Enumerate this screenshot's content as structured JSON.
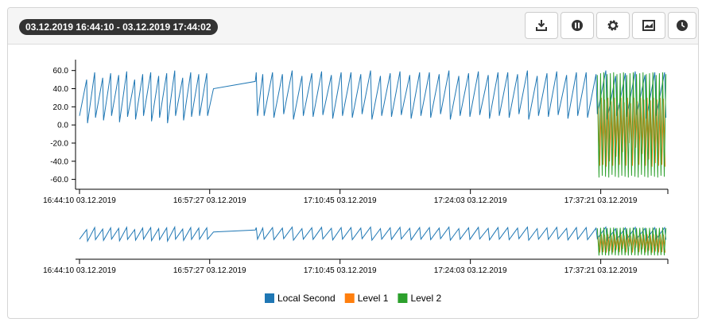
{
  "header": {
    "range_label": "03.12.2019 16:44:10 - 03.12.2019 17:44:02"
  },
  "chart_data": {
    "type": "line",
    "xlim": [
      "16:44:10",
      "17:44:02"
    ],
    "xticks": [
      "16:44:10 03.12.2019",
      "16:57:27 03.12.2019",
      "17:10:45 03.12.2019",
      "17:24:03 03.12.2019",
      "17:37:21 03.12.2019"
    ],
    "ylim": [
      -70,
      72
    ],
    "yticks": [
      {
        "value": 60,
        "label": "60.0"
      },
      {
        "value": 40,
        "label": "40.0"
      },
      {
        "value": 20,
        "label": "20.0"
      },
      {
        "value": 0,
        "label": "0.0"
      },
      {
        "value": -20,
        "label": "-20.0"
      },
      {
        "value": -40,
        "label": "-40.0"
      },
      {
        "value": -60,
        "label": "-60.0"
      }
    ],
    "series": [
      {
        "name": "Local Second",
        "color": "#1f77b4",
        "x": [
          "16:44:10",
          "16:44:54",
          "16:44:59",
          "16:45:43",
          "16:45:48",
          "16:46:32",
          "16:46:37",
          "16:47:21",
          "16:47:26",
          "16:48:10",
          "16:48:15",
          "16:48:59",
          "16:49:04",
          "16:49:48",
          "16:49:53",
          "16:50:37",
          "16:50:42",
          "16:51:26",
          "16:51:31",
          "16:52:15",
          "16:52:20",
          "16:53:04",
          "16:53:09",
          "16:53:53",
          "16:53:58",
          "16:54:42",
          "16:54:47",
          "16:55:31",
          "16:55:36",
          "16:56:20",
          "16:56:25",
          "16:57:09",
          "16:57:14",
          "16:57:50",
          "17:02:06",
          "17:02:12",
          "17:02:20",
          "17:02:52",
          "17:03:00",
          "17:03:52",
          "17:04:00",
          "17:04:52",
          "17:05:00",
          "17:05:52",
          "17:06:00",
          "17:06:52",
          "17:07:00",
          "17:07:52",
          "17:08:00",
          "17:08:52",
          "17:09:00",
          "17:09:52",
          "17:10:00",
          "17:10:52",
          "17:11:00",
          "17:11:52",
          "17:12:00",
          "17:12:52",
          "17:13:00",
          "17:13:52",
          "17:14:00",
          "17:14:52",
          "17:15:00",
          "17:15:52",
          "17:16:00",
          "17:16:52",
          "17:17:00",
          "17:17:52",
          "17:18:00",
          "17:18:52",
          "17:19:00",
          "17:19:52",
          "17:20:00",
          "17:20:52",
          "17:21:00",
          "17:21:52",
          "17:22:00",
          "17:22:52",
          "17:23:00",
          "17:23:52",
          "17:24:00",
          "17:24:52",
          "17:25:00",
          "17:25:52",
          "17:26:00",
          "17:26:52",
          "17:27:00",
          "17:27:52",
          "17:28:00",
          "17:28:52",
          "17:29:00",
          "17:29:52",
          "17:30:00",
          "17:30:52",
          "17:31:00",
          "17:31:52",
          "17:32:00",
          "17:32:52",
          "17:33:00",
          "17:33:52",
          "17:34:00",
          "17:34:52",
          "17:35:00",
          "17:35:52",
          "17:36:00",
          "17:36:52",
          "17:37:00",
          "17:37:52",
          "17:38:00",
          "17:38:52",
          "17:39:00",
          "17:39:52",
          "17:40:00",
          "17:40:52",
          "17:41:00",
          "17:41:52",
          "17:42:00",
          "17:42:52",
          "17:43:00",
          "17:43:52",
          "17:44:00"
        ],
        "values": [
          10,
          50,
          2,
          58,
          8,
          52,
          5,
          57,
          10,
          55,
          3,
          59,
          9,
          50,
          6,
          56,
          10,
          58,
          4,
          54,
          8,
          57,
          2,
          60,
          10,
          52,
          5,
          58,
          9,
          56,
          10,
          57,
          10,
          40,
          48,
          58,
          10,
          56,
          10,
          58,
          8,
          56,
          12,
          60,
          6,
          54,
          10,
          57,
          9,
          59,
          11,
          55,
          7,
          58,
          10,
          58,
          8,
          56,
          12,
          60,
          6,
          54,
          10,
          57,
          9,
          59,
          11,
          55,
          7,
          58,
          10,
          58,
          8,
          56,
          12,
          60,
          6,
          54,
          10,
          57,
          9,
          59,
          11,
          55,
          7,
          58,
          10,
          58,
          8,
          56,
          12,
          60,
          6,
          54,
          10,
          57,
          9,
          59,
          11,
          55,
          7,
          58,
          10,
          58,
          8,
          56,
          12,
          60,
          6,
          54,
          10,
          57,
          9,
          59,
          11,
          55,
          7,
          58,
          10,
          58,
          8
        ]
      },
      {
        "name": "Level 1",
        "color": "#ff7f0e",
        "x": [
          "17:37:05",
          "17:37:15",
          "17:37:25",
          "17:37:35",
          "17:37:45",
          "17:37:55",
          "17:38:05",
          "17:38:15",
          "17:38:25",
          "17:38:35",
          "17:38:45",
          "17:38:55",
          "17:39:05",
          "17:39:15",
          "17:39:25",
          "17:39:35",
          "17:39:45",
          "17:39:55",
          "17:40:05",
          "17:40:15",
          "17:40:25",
          "17:40:35",
          "17:40:45",
          "17:40:55",
          "17:41:05",
          "17:41:15",
          "17:41:25",
          "17:41:35",
          "17:41:45",
          "17:41:55",
          "17:42:05",
          "17:42:15",
          "17:42:25",
          "17:42:35",
          "17:42:45",
          "17:42:55",
          "17:43:05",
          "17:43:15",
          "17:43:25",
          "17:43:35",
          "17:43:45",
          "17:43:55"
        ],
        "values": [
          20,
          -45,
          30,
          -44,
          28,
          -46,
          30,
          -40,
          26,
          -45,
          30,
          -35,
          22,
          -44,
          30,
          -30,
          25,
          -45,
          30,
          -20,
          24,
          -45,
          30,
          -25,
          26,
          -44,
          30,
          -32,
          28,
          -45,
          30,
          -38,
          27,
          -46,
          30,
          -42,
          28,
          -45,
          30,
          -44,
          29,
          -46
        ]
      },
      {
        "name": "Level 2",
        "color": "#2ca02c",
        "x": [
          "17:37:00",
          "17:37:10",
          "17:37:20",
          "17:37:30",
          "17:37:40",
          "17:37:50",
          "17:38:00",
          "17:38:10",
          "17:38:20",
          "17:38:30",
          "17:38:40",
          "17:38:50",
          "17:39:00",
          "17:39:10",
          "17:39:20",
          "17:39:30",
          "17:39:40",
          "17:39:50",
          "17:40:00",
          "17:40:10",
          "17:40:20",
          "17:40:30",
          "17:40:40",
          "17:40:50",
          "17:41:00",
          "17:41:10",
          "17:41:20",
          "17:41:30",
          "17:41:40",
          "17:41:50",
          "17:42:00",
          "17:42:10",
          "17:42:20",
          "17:42:30",
          "17:42:40",
          "17:42:50",
          "17:43:00",
          "17:43:10",
          "17:43:20",
          "17:43:30",
          "17:43:40",
          "17:43:50",
          "17:44:00"
        ],
        "values": [
          55,
          -58,
          57,
          -56,
          58,
          -57,
          56,
          -58,
          57,
          -55,
          58,
          -57,
          56,
          -58,
          57,
          -56,
          58,
          -57,
          55,
          -58,
          57,
          -56,
          58,
          -57,
          56,
          -58,
          57,
          -55,
          58,
          -57,
          56,
          -58,
          57,
          -56,
          58,
          -57,
          55,
          -58,
          57,
          -56,
          58,
          -57,
          56
        ]
      }
    ]
  }
}
